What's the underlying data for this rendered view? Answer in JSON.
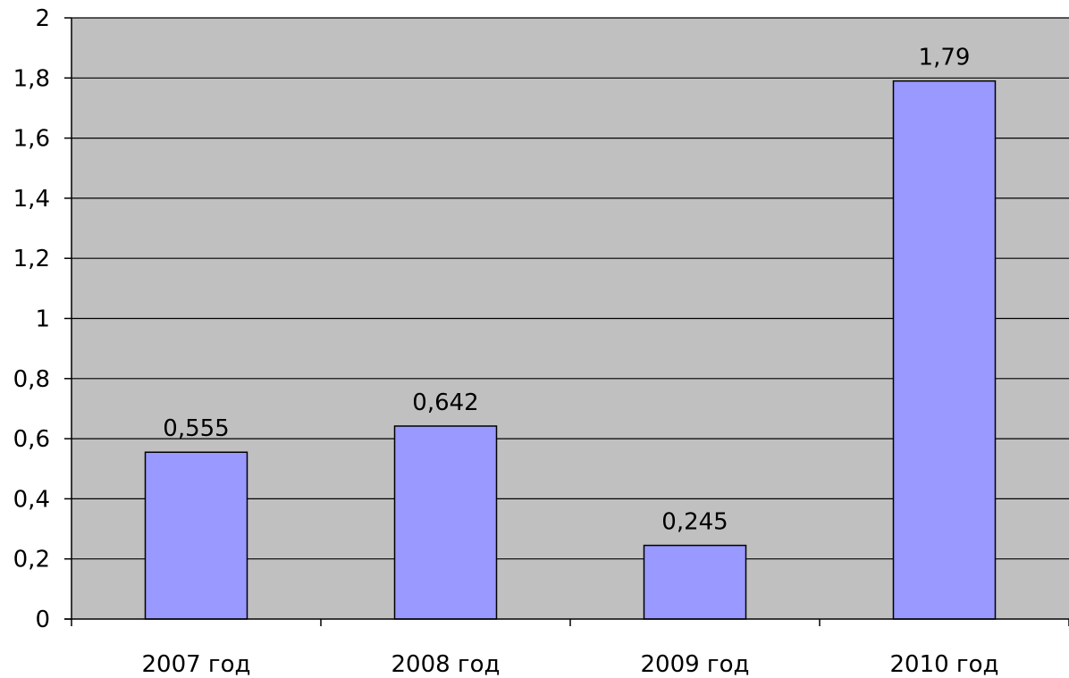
{
  "chart_data": {
    "type": "bar",
    "title": "",
    "xlabel": "",
    "ylabel": "",
    "categories": [
      "2007 год",
      "2008 год",
      "2009 год",
      "2010 год"
    ],
    "values": [
      0.555,
      0.642,
      0.245,
      1.79
    ],
    "value_labels": [
      "0,555",
      "0,642",
      "0,245",
      "1,79"
    ],
    "ylim": [
      0,
      2
    ],
    "y_ticks": [
      0,
      0.2,
      0.4,
      0.6,
      0.8,
      1,
      1.2,
      1.4,
      1.6,
      1.8,
      2
    ],
    "y_tick_labels": [
      "0",
      "0,2",
      "0,4",
      "0,6",
      "0,8",
      "1",
      "1,2",
      "1,4",
      "1,6",
      "1,8",
      "2"
    ],
    "grid": true,
    "legend": false,
    "colors": {
      "bar_fill": "#9999ff",
      "plot_background": "#c0c0c0",
      "gridline": "#000000"
    }
  }
}
